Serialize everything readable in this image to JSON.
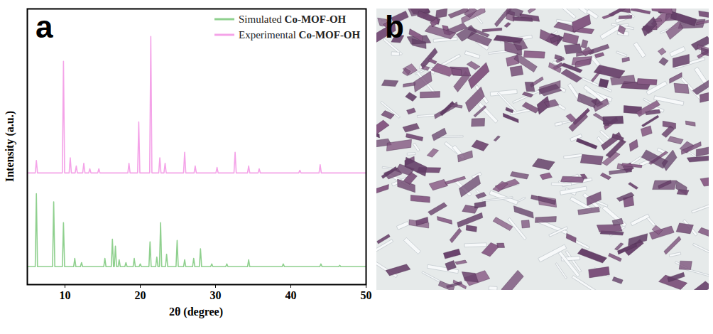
{
  "chart_data": {
    "type": "line",
    "panel_label": "a",
    "x_label": "2θ (degree)",
    "y_label": "Intensity (a.u.)",
    "xlim": [
      5,
      50
    ],
    "xticks": [
      10,
      20,
      30,
      40,
      50
    ],
    "ylim": [
      0,
      100
    ],
    "yticks": [],
    "tick_labels": "x",
    "legend": "upper right",
    "series": [
      {
        "name": "Simulated Co-MOF-OH",
        "color": "#8fd08e",
        "x": [
          5,
          6.05,
          6.2,
          6.35,
          8.35,
          8.5,
          8.65,
          9.65,
          9.8,
          9.95,
          11.15,
          11.3,
          11.45,
          12.05,
          12.2,
          12.35,
          15.15,
          15.3,
          15.45,
          16.15,
          16.3,
          16.45,
          16.55,
          16.7,
          16.85,
          17.05,
          17.2,
          17.35,
          17.95,
          18.1,
          18.25,
          19.05,
          19.2,
          19.35,
          19.85,
          20,
          20.15,
          21.15,
          21.3,
          21.45,
          22.05,
          22.2,
          22.35,
          22.55,
          22.7,
          22.85,
          23.35,
          23.5,
          23.65,
          24.75,
          24.9,
          25.05,
          25.75,
          25.9,
          26.05,
          26.95,
          27.1,
          27.25,
          27.85,
          28,
          28.15,
          29.35,
          29.5,
          29.65,
          31.35,
          31.5,
          31.65,
          34.25,
          34.4,
          34.55,
          38.85,
          39,
          39.15,
          43.85,
          44,
          44.15,
          46.35,
          46.5,
          46.65,
          50
        ],
        "values": [
          6.5,
          6.5,
          33,
          6.5,
          6.5,
          30,
          6.5,
          6.5,
          22.5,
          6.5,
          6.5,
          9.5,
          6.5,
          6.5,
          8,
          6.5,
          6.5,
          9.5,
          6.5,
          6.5,
          16.5,
          6.5,
          6.5,
          14,
          6.5,
          6.5,
          9,
          6.5,
          6.5,
          8,
          6.5,
          6.5,
          9.5,
          6.5,
          6.5,
          7.5,
          6.5,
          6.5,
          15.5,
          6.5,
          6.5,
          10,
          6.5,
          6.5,
          22.5,
          6.5,
          6.5,
          11,
          6.5,
          6.5,
          16,
          6.5,
          6.5,
          9,
          6.5,
          6.5,
          9.5,
          6.5,
          6.5,
          13,
          6.5,
          6.5,
          7.5,
          6.5,
          6.5,
          7.5,
          6.5,
          6.5,
          9,
          6.5,
          6.5,
          7.5,
          6.5,
          6.5,
          7.5,
          6.5,
          6.5,
          7,
          6.5,
          6.5
        ]
      },
      {
        "name": "Experimental Co-MOF-OH",
        "color": "#f4a3e8",
        "x": [
          5,
          6.05,
          6.2,
          6.35,
          9.65,
          9.8,
          9.95,
          10.55,
          10.7,
          10.85,
          11.35,
          11.5,
          11.65,
          12.35,
          12.5,
          12.65,
          13.15,
          13.3,
          13.45,
          14.35,
          14.5,
          14.65,
          18.35,
          18.5,
          18.65,
          19.65,
          19.8,
          19.95,
          21.25,
          21.4,
          21.55,
          22.45,
          22.6,
          22.75,
          23.15,
          23.3,
          23.45,
          25.75,
          25.9,
          26.05,
          27.15,
          27.3,
          27.45,
          30.05,
          30.2,
          30.35,
          32.45,
          32.6,
          32.75,
          34.25,
          34.4,
          34.55,
          35.65,
          35.8,
          35.95,
          41.05,
          41.2,
          41.35,
          43.75,
          43.9,
          44.05,
          50
        ],
        "values": [
          40.5,
          40.5,
          45,
          40.5,
          40.5,
          81,
          40.5,
          40.5,
          46,
          40.5,
          40.5,
          43,
          40.5,
          40.5,
          44,
          40.5,
          40.5,
          42,
          40.5,
          40.5,
          42,
          40.5,
          40.5,
          44,
          40.5,
          40.5,
          59,
          40.5,
          40.5,
          90,
          40.5,
          40.5,
          46,
          40.5,
          40.5,
          44,
          40.5,
          40.5,
          48,
          40.5,
          40.5,
          43,
          40.5,
          40.5,
          42.5,
          40.5,
          40.5,
          48,
          40.5,
          40.5,
          43,
          40.5,
          40.5,
          42,
          40.5,
          40.5,
          41.5,
          40.5,
          40.5,
          43.5,
          40.5,
          40.5
        ]
      }
    ]
  },
  "image_panel": {
    "panel_label": "b"
  }
}
